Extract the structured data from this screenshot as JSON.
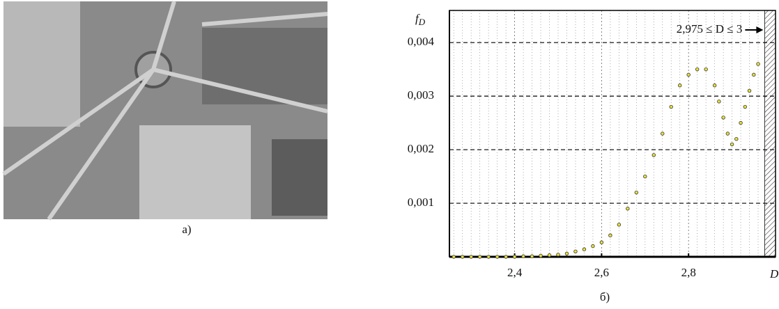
{
  "image": {
    "caption": "а)"
  },
  "chart_data": {
    "type": "scatter",
    "caption": "б)",
    "ylabel": "f",
    "ylabel_sub": "D",
    "xlabel": "D",
    "annotation": "2,975 ≤ D ≤ 3",
    "shaded_span": [
      2.975,
      3
    ],
    "color": "#e8e03a",
    "edge_color": "#333333",
    "grid": true,
    "xlim": [
      2.25,
      3.0
    ],
    "ylim": [
      0,
      0.0046
    ],
    "xticks": [
      {
        "value": 2.4,
        "label": "2,4"
      },
      {
        "value": 2.6,
        "label": "2,6"
      },
      {
        "value": 2.8,
        "label": "2,8"
      }
    ],
    "x_minor_ticks": [
      2.26,
      2.28,
      2.3,
      2.32,
      2.34,
      2.36,
      2.38,
      2.42,
      2.44,
      2.46,
      2.48,
      2.5,
      2.52,
      2.54,
      2.56,
      2.58,
      2.62,
      2.64,
      2.66,
      2.68,
      2.7,
      2.72,
      2.74,
      2.76,
      2.78,
      2.82,
      2.84,
      2.86,
      2.88,
      2.9,
      2.92,
      2.94,
      2.96
    ],
    "yticks": [
      {
        "value": 0.001,
        "label": "0,001"
      },
      {
        "value": 0.002,
        "label": "0,002"
      },
      {
        "value": 0.003,
        "label": "0,003"
      },
      {
        "value": 0.004,
        "label": "0,004"
      }
    ],
    "x": [
      2.26,
      2.28,
      2.3,
      2.32,
      2.34,
      2.36,
      2.38,
      2.4,
      2.42,
      2.44,
      2.46,
      2.48,
      2.5,
      2.52,
      2.54,
      2.56,
      2.58,
      2.6,
      2.62,
      2.64,
      2.66,
      2.68,
      2.7,
      2.72,
      2.74,
      2.76,
      2.78,
      2.8,
      2.82,
      2.84,
      2.86,
      2.87,
      2.88,
      2.89,
      2.9,
      2.91,
      2.92,
      2.93,
      2.94,
      2.95,
      2.96
    ],
    "values": [
      0,
      0,
      0,
      0,
      0,
      0,
      0,
      0,
      1e-05,
      1e-05,
      2e-05,
      3e-05,
      4e-05,
      6e-05,
      0.0001,
      0.00014,
      0.0002,
      0.00027,
      0.0004,
      0.0006,
      0.0009,
      0.0012,
      0.0015,
      0.0019,
      0.0023,
      0.0028,
      0.0032,
      0.0034,
      0.0035,
      0.0035,
      0.0032,
      0.0029,
      0.0026,
      0.0023,
      0.0021,
      0.0022,
      0.0025,
      0.0028,
      0.0031,
      0.0034,
      0.0036
    ]
  }
}
